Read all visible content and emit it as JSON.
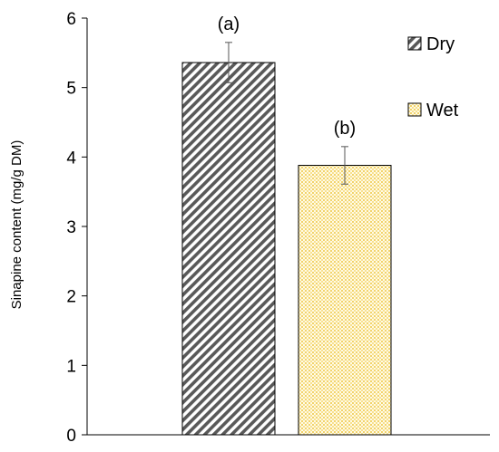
{
  "chart_data": {
    "type": "bar",
    "categories": [
      "Dry",
      "Wet"
    ],
    "series": [
      {
        "name": "Sinapine content",
        "values": [
          5.36,
          3.88
        ],
        "errors": [
          0.29,
          0.27
        ],
        "significance": [
          "(a)",
          "(b)"
        ]
      }
    ],
    "title": "",
    "xlabel": "",
    "ylabel": "Sinapine content (mg/g DM)",
    "ylim": [
      0,
      6
    ],
    "yticks": [
      "0",
      "1",
      "2",
      "3",
      "4",
      "5",
      "6"
    ],
    "grid": false,
    "legend": {
      "placement": "top-right",
      "entries": [
        {
          "label": "Dry",
          "pattern": "diagonal-stripes",
          "color": "#595959"
        },
        {
          "label": "Wet",
          "pattern": "dotted",
          "color": "#ffd966"
        }
      ]
    }
  }
}
